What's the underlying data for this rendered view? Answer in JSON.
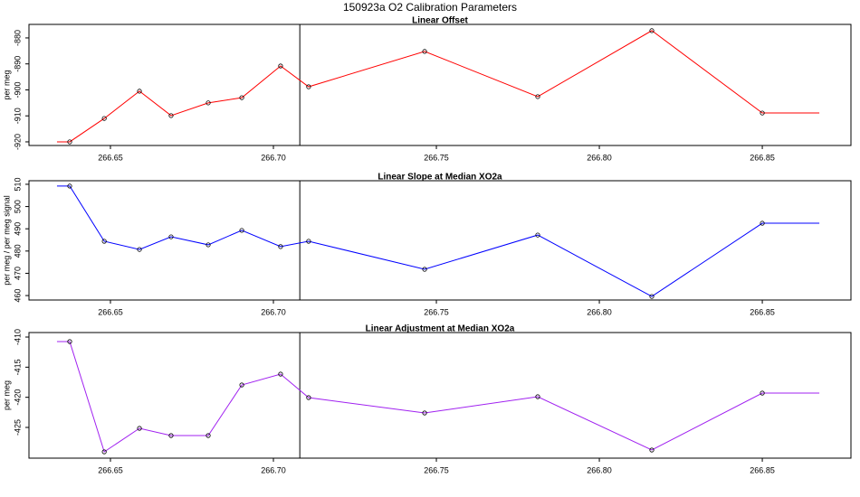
{
  "title": "150923a   O2 Calibration Parameters",
  "chart_data": [
    {
      "type": "line",
      "title": "Linear Offset",
      "ylabel": "per meg",
      "x": [
        266.6336,
        266.6375,
        266.6481,
        266.6589,
        266.6686,
        266.68,
        266.6903,
        266.7022,
        266.7108,
        266.7464,
        266.7811,
        266.8161,
        266.85,
        266.8675
      ],
      "values": [
        -920,
        -920,
        -911,
        -900.5,
        -909.9,
        -905,
        -903,
        -890.8,
        -898.8,
        -885.2,
        -902.6,
        -877.2,
        -908.9,
        -908.9
      ],
      "markers": [
        false,
        true,
        true,
        true,
        true,
        true,
        true,
        true,
        true,
        true,
        true,
        true,
        true,
        false
      ],
      "color": "#ff0000",
      "vline": 266.7081,
      "xlim": [
        266.625,
        266.8772
      ],
      "ylim": [
        -921.4,
        -874.8
      ],
      "xticks": [
        266.65,
        {
          "value": 266.7,
          "label": "266.70"
        },
        266.75,
        {
          "value": 266.8,
          "label": "266.80"
        },
        266.85
      ],
      "yticks": [
        -880,
        -890,
        -900,
        -910,
        -920
      ]
    },
    {
      "type": "line",
      "title": "Linear Slope at Median XO2a",
      "ylabel": "per meg / per meg signal",
      "x": [
        266.6336,
        266.6375,
        266.6481,
        266.6589,
        266.6686,
        266.68,
        266.6903,
        266.7022,
        266.7108,
        266.7464,
        266.7811,
        266.8161,
        266.85,
        266.8675
      ],
      "values": [
        509.2,
        509.2,
        484.4,
        480.7,
        486.4,
        482.8,
        489.3,
        482,
        484.4,
        471.8,
        487.2,
        459.6,
        492.5,
        492.5
      ],
      "markers": [
        false,
        true,
        true,
        true,
        true,
        true,
        true,
        true,
        true,
        true,
        true,
        true,
        true,
        false
      ],
      "color": "#0000ff",
      "vline": 266.7081,
      "xlim": [
        266.625,
        266.8772
      ],
      "ylim": [
        458,
        511.6
      ],
      "xticks": [
        266.65,
        {
          "value": 266.7,
          "label": "266.70"
        },
        266.75,
        {
          "value": 266.8,
          "label": "266.80"
        },
        266.85
      ],
      "yticks": [
        510,
        500,
        490,
        480,
        470,
        460
      ]
    },
    {
      "type": "line",
      "title": "Linear Adjustment at Median XO2a",
      "ylabel": "per meg",
      "x": [
        266.6336,
        266.6375,
        266.6481,
        266.6589,
        266.6686,
        266.68,
        266.6903,
        266.7022,
        266.7108,
        266.7464,
        266.7811,
        266.8161,
        266.85,
        266.8675
      ],
      "values": [
        -410.75,
        -410.75,
        -429.05,
        -425.15,
        -426.35,
        -426.35,
        -417.95,
        -416.15,
        -420.05,
        -422.6,
        -419.9,
        -428.75,
        -419.3,
        -419.3
      ],
      "markers": [
        false,
        true,
        true,
        true,
        true,
        true,
        true,
        true,
        true,
        true,
        true,
        true,
        true,
        false
      ],
      "color": "#a020f0",
      "vline": 266.7081,
      "xlim": [
        266.625,
        266.8772
      ],
      "ylim": [
        -430.1,
        -409.25
      ],
      "xticks": [
        266.65,
        {
          "value": 266.7,
          "label": "266.70"
        },
        266.75,
        {
          "value": 266.8,
          "label": "266.80"
        },
        266.85
      ],
      "yticks": [
        -410,
        -415,
        -420,
        -425
      ]
    }
  ]
}
